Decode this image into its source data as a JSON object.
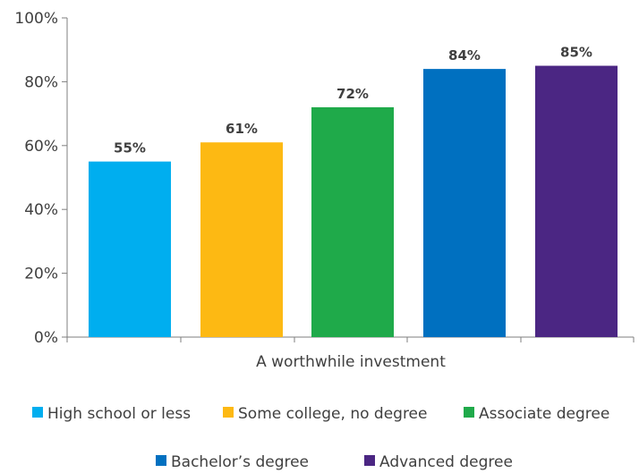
{
  "chart_data": {
    "type": "bar",
    "categories": [
      "A worthwhile investment"
    ],
    "series": [
      {
        "name": "High school or less",
        "values": [
          55
        ],
        "color": "#00AEEF"
      },
      {
        "name": "Some college, no degree",
        "values": [
          61
        ],
        "color": "#FDB913"
      },
      {
        "name": "Associate degree",
        "values": [
          72
        ],
        "color": "#1FAA4A"
      },
      {
        "name": "Bachelor’s degree",
        "values": [
          84
        ],
        "color": "#0070C0"
      },
      {
        "name": "Advanced degree",
        "values": [
          85
        ],
        "color": "#4B2683"
      }
    ],
    "data_labels": [
      "55%",
      "61%",
      "72%",
      "84%",
      "85%"
    ],
    "yticks": [
      "0%",
      "20%",
      "40%",
      "60%",
      "80%",
      "100%"
    ],
    "ylim": [
      0,
      100
    ],
    "title": "",
    "xlabel": "",
    "ylabel": "",
    "grid": false,
    "legend_position": "bottom"
  }
}
